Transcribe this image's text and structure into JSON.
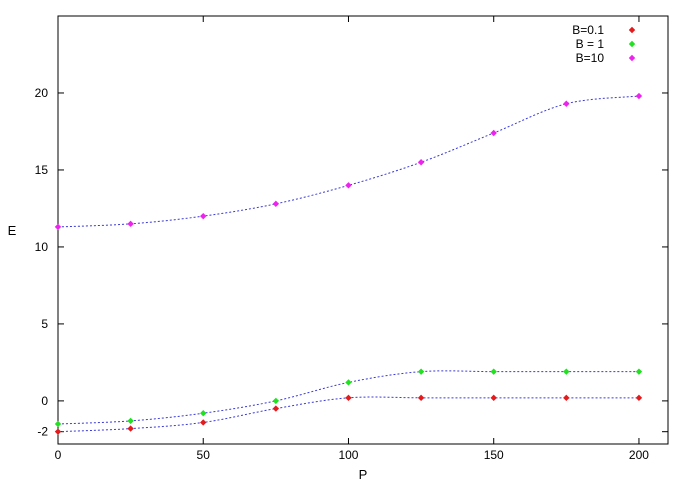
{
  "chart_data": {
    "type": "scatter",
    "xlabel": "P",
    "ylabel": "E",
    "xlim": [
      0,
      210
    ],
    "ylim": [
      -2.8,
      25
    ],
    "x_ticks": [
      0,
      50,
      100,
      150,
      200
    ],
    "y_ticks": [
      -2,
      0,
      5,
      10,
      15,
      20
    ],
    "grid": false,
    "legend_position": "top-right",
    "fit_curve_color": "#3a3ad6",
    "series": [
      {
        "name": "B=0.1",
        "color": "#e41a1c",
        "x": [
          0,
          25,
          50,
          75,
          100,
          125,
          150,
          175,
          200
        ],
        "y": [
          -2.0,
          -1.8,
          -1.4,
          -0.5,
          0.2,
          0.2,
          0.2,
          0.2,
          0.2
        ]
      },
      {
        "name": "B = 1",
        "color": "#22e022",
        "x": [
          0,
          25,
          50,
          75,
          100,
          125,
          150,
          175,
          200
        ],
        "y": [
          -1.5,
          -1.3,
          -0.8,
          0.0,
          1.2,
          1.9,
          1.9,
          1.9,
          1.9
        ]
      },
      {
        "name": "B=10",
        "color": "#ee22ee",
        "x": [
          0,
          25,
          50,
          75,
          100,
          125,
          150,
          175,
          200
        ],
        "y": [
          11.3,
          11.5,
          12.0,
          12.8,
          14.0,
          15.5,
          17.4,
          19.3,
          19.8
        ]
      }
    ]
  }
}
